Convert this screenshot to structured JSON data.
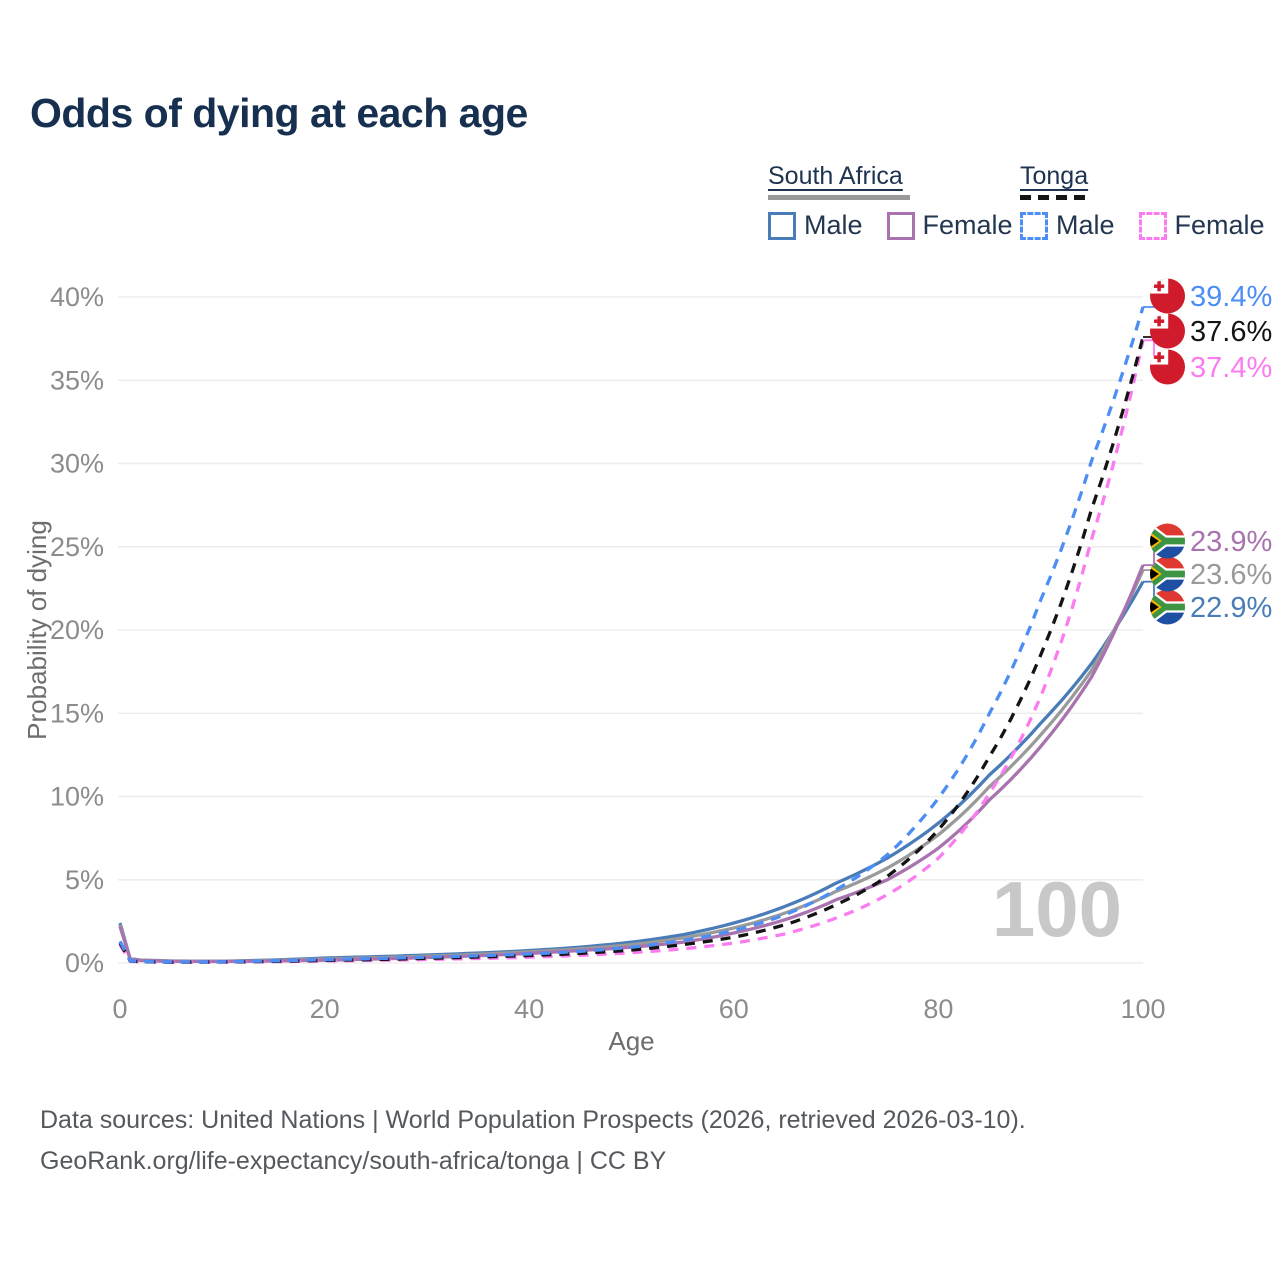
{
  "title": "Odds of dying at each age",
  "legend": {
    "groups": [
      {
        "label": "South Africa",
        "line_style": "solid",
        "bar_color": "#9a9a9a",
        "items": [
          {
            "label": "Male",
            "color": "#4a7db8"
          },
          {
            "label": "Female",
            "color": "#a873ae"
          }
        ]
      },
      {
        "label": "Tonga",
        "line_style": "dashed",
        "bar_color": "#141414",
        "items": [
          {
            "label": "Male",
            "color": "#4d8ef5"
          },
          {
            "label": "Female",
            "color": "#fb7cf0"
          }
        ]
      }
    ]
  },
  "axes": {
    "x": {
      "label": "Age",
      "ticks": [
        0,
        20,
        40,
        60,
        80,
        100
      ]
    },
    "y": {
      "label": "Probability of dying",
      "tick_labels": [
        "0%",
        "5%",
        "10%",
        "15%",
        "20%",
        "25%",
        "30%",
        "35%",
        "40%"
      ],
      "tick_values": [
        0,
        5,
        10,
        15,
        20,
        25,
        30,
        35,
        40
      ]
    }
  },
  "watermark": "100",
  "footer": {
    "line1": "Data sources: United Nations | World Population Prospects (2026, retrieved 2026-03-10).",
    "line2": "GeoRank.org/life-expectancy/south-africa/tonga | CC BY"
  },
  "colors": {
    "grid": "#ededed",
    "tick_text": "#8c8c8c",
    "axis_title": "#6e6e6e",
    "title_text": "#17304f",
    "watermark": "#c8c8c8"
  },
  "chart_data": {
    "type": "line",
    "title": "Odds of dying at each age",
    "xlabel": "Age",
    "ylabel": "Probability of dying",
    "x_range": [
      0,
      100
    ],
    "y_range_percent": [
      0,
      40
    ],
    "grid": true,
    "legend_position": "top-right",
    "ages": [
      0,
      1,
      2,
      5,
      10,
      15,
      20,
      25,
      30,
      35,
      40,
      45,
      50,
      55,
      60,
      65,
      70,
      75,
      80,
      85,
      90,
      95,
      100
    ],
    "series": [
      {
        "id": "sa_male",
        "name": "South Africa Male",
        "color": "#4a7db8",
        "dash": false,
        "flag": "south-africa",
        "end_label": "22.9%",
        "values": [
          2.4,
          0.25,
          0.18,
          0.12,
          0.11,
          0.18,
          0.3,
          0.38,
          0.48,
          0.6,
          0.75,
          0.95,
          1.25,
          1.7,
          2.4,
          3.4,
          4.8,
          6.3,
          8.4,
          11.3,
          14.4,
          18.0,
          22.9
        ]
      },
      {
        "id": "sa_total",
        "name": "South Africa Both sexes",
        "color": "#9a9a9a",
        "dash": false,
        "flag": "south-africa",
        "end_label": "23.6%",
        "values": [
          2.3,
          0.24,
          0.17,
          0.11,
          0.1,
          0.15,
          0.24,
          0.31,
          0.41,
          0.52,
          0.67,
          0.85,
          1.1,
          1.5,
          2.1,
          3.0,
          4.3,
          5.7,
          7.7,
          10.6,
          13.7,
          17.6,
          23.6
        ]
      },
      {
        "id": "sa_female",
        "name": "South Africa Female",
        "color": "#a873ae",
        "dash": false,
        "flag": "south-africa",
        "end_label": "23.9%",
        "values": [
          2.2,
          0.22,
          0.15,
          0.1,
          0.09,
          0.12,
          0.17,
          0.24,
          0.33,
          0.44,
          0.58,
          0.75,
          0.95,
          1.25,
          1.8,
          2.6,
          3.8,
          5.0,
          6.9,
          9.8,
          13.0,
          17.2,
          23.9
        ]
      },
      {
        "id": "tonga_female",
        "name": "Tonga Female",
        "color": "#fb7cf0",
        "dash": true,
        "flag": "tonga",
        "end_label": "37.4%",
        "values": [
          1.1,
          0.1,
          0.07,
          0.04,
          0.05,
          0.08,
          0.12,
          0.16,
          0.21,
          0.27,
          0.35,
          0.46,
          0.62,
          0.85,
          1.2,
          1.75,
          2.7,
          4.1,
          6.3,
          10.2,
          16.0,
          25.5,
          37.4
        ]
      },
      {
        "id": "tonga_total",
        "name": "Tonga Both sexes",
        "color": "#141414",
        "dash": true,
        "flag": "tonga",
        "end_label": "37.6%",
        "values": [
          1.2,
          0.12,
          0.08,
          0.05,
          0.06,
          0.1,
          0.16,
          0.21,
          0.28,
          0.36,
          0.45,
          0.58,
          0.78,
          1.1,
          1.55,
          2.3,
          3.5,
          5.2,
          8.0,
          12.4,
          18.5,
          27.3,
          37.6
        ]
      },
      {
        "id": "tonga_male",
        "name": "Tonga Male",
        "color": "#4d8ef5",
        "dash": true,
        "flag": "tonga",
        "end_label": "39.4%",
        "values": [
          1.3,
          0.14,
          0.09,
          0.06,
          0.07,
          0.13,
          0.2,
          0.27,
          0.35,
          0.44,
          0.54,
          0.7,
          0.95,
          1.35,
          1.95,
          2.9,
          4.4,
          6.5,
          9.9,
          15.0,
          21.8,
          30.2,
          39.4
        ]
      }
    ]
  }
}
